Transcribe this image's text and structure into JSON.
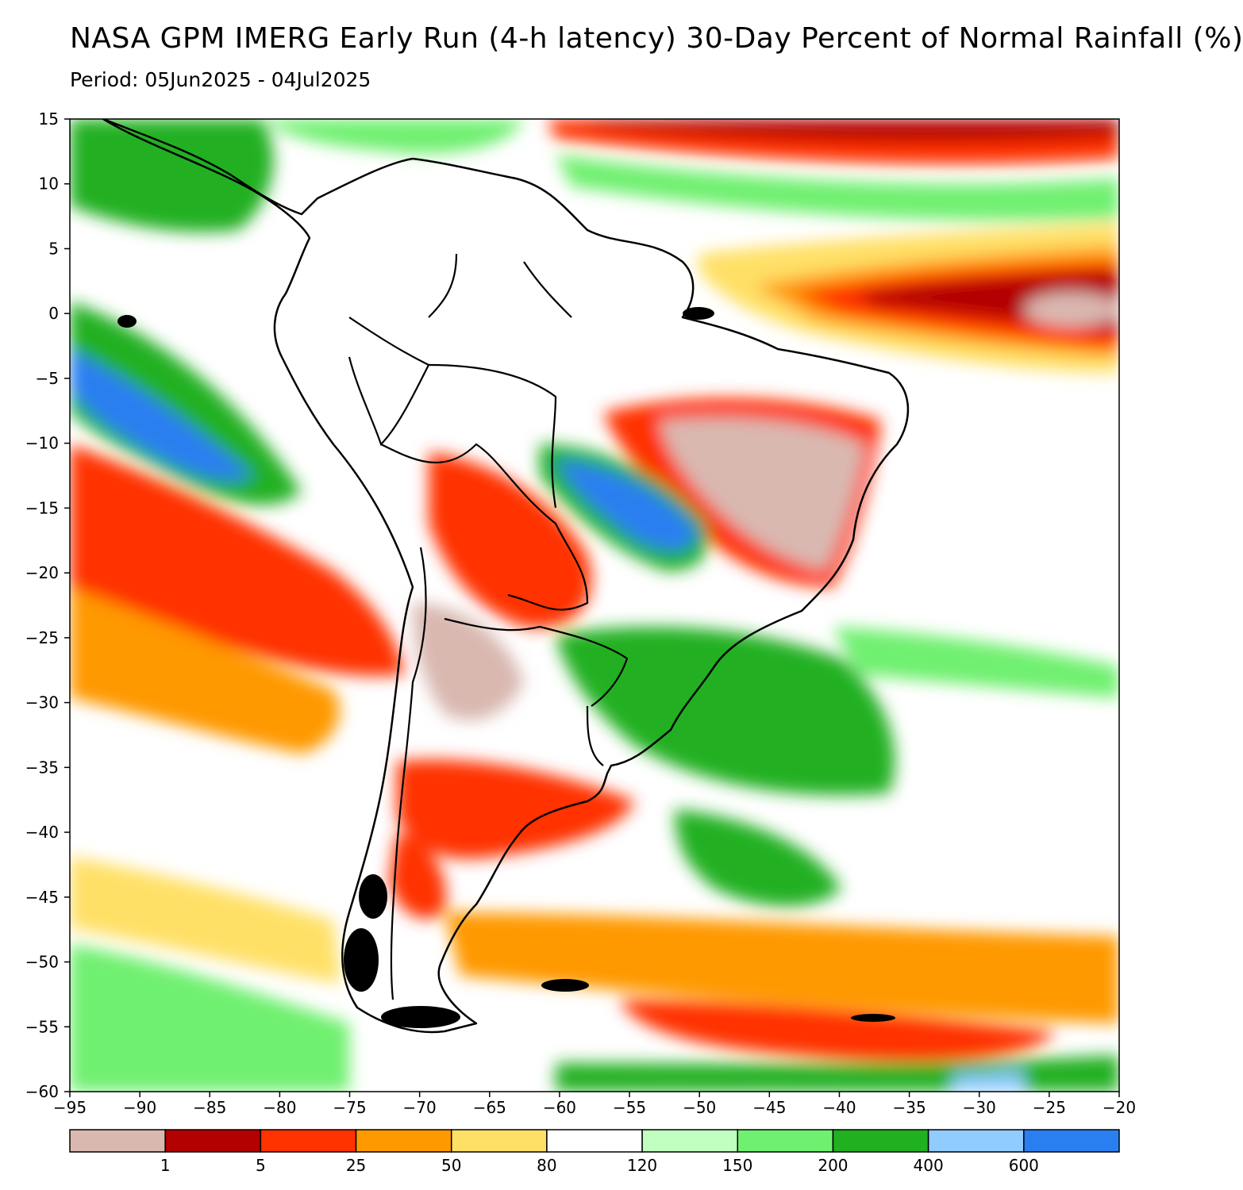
{
  "header": {
    "title": "NASA GPM IMERG Early Run (4-h latency) 30-Day Percent of Normal Rainfall (%)",
    "subtitle": "Period: 05Jun2025 - 04Jul2025"
  },
  "map": {
    "projection": "lat-lon",
    "lon_range": [
      -95,
      -20
    ],
    "lat_range": [
      -60,
      15
    ],
    "x_ticks": [
      "-95",
      "-90",
      "-85",
      "-80",
      "-75",
      "-70",
      "-65",
      "-60",
      "-55",
      "-50",
      "-45",
      "-40",
      "-35",
      "-30",
      "-25",
      "-20"
    ],
    "y_ticks": [
      "15",
      "10",
      "5",
      "0",
      "-5",
      "-10",
      "-15",
      "-20",
      "-25",
      "-30",
      "-35",
      "-40",
      "-45",
      "-50",
      "-55",
      "-60"
    ]
  },
  "colorbar": {
    "colors": [
      "#d9b8b0",
      "#b30000",
      "#ff3300",
      "#ff9900",
      "#ffe066",
      "#ffffff",
      "#c0ffc0",
      "#70f070",
      "#20b020",
      "#90ccff",
      "#2a7ff0"
    ],
    "labels": [
      "1",
      "5",
      "25",
      "50",
      "80",
      "120",
      "150",
      "200",
      "400",
      "600"
    ]
  },
  "palette": {
    "deficit_severe": "#b30000",
    "deficit_strong": "#ff3300",
    "deficit_moderate": "#ff9900",
    "deficit_light": "#ffe066",
    "near_normal": "#ffffff",
    "surplus_light": "#c0ffc0",
    "surplus_moderate": "#70f070",
    "surplus_strong": "#20b020",
    "surplus_heavy": "#90ccff",
    "surplus_extreme": "#2a7ff0",
    "near_zero": "#d9b8b0"
  }
}
